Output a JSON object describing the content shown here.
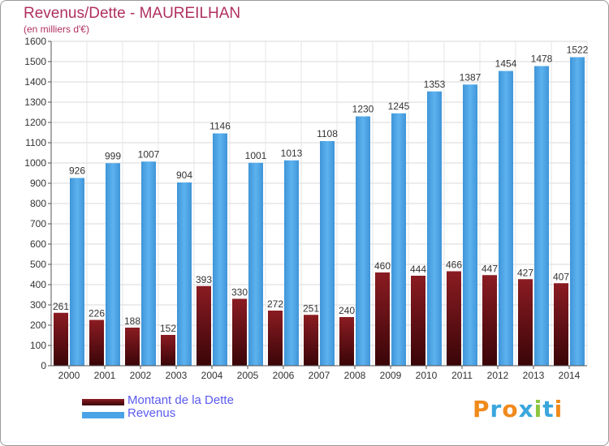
{
  "title": "Revenus/Dette - MAUREILHAN",
  "subtitle": "(en milliers d'€)",
  "colors": {
    "debt": "#6b1218",
    "revenue": "#4aa3e6",
    "title": "#b03060",
    "legend_text": "#5a5af0"
  },
  "legend": [
    {
      "label": "Montant de la Dette",
      "color": "#6b1218"
    },
    {
      "label": "Revenus",
      "color": "#4aa3e6"
    }
  ],
  "logo": {
    "letters": [
      "P",
      "r",
      "o",
      "x",
      "i",
      "t",
      "i"
    ],
    "colors": [
      "#f08a1c",
      "#3aa6dc",
      "#f08a1c",
      "#3aa6dc",
      "#8cc63f",
      "#3aa6dc",
      "#f08a1c"
    ]
  },
  "chart_data": {
    "type": "bar",
    "categories": [
      "2000",
      "2001",
      "2002",
      "2003",
      "2004",
      "2005",
      "2006",
      "2007",
      "2008",
      "2009",
      "2010",
      "2011",
      "2012",
      "2013",
      "2014"
    ],
    "series": [
      {
        "name": "Montant de la Dette",
        "values": [
          261,
          226,
          188,
          152,
          393,
          330,
          272,
          251,
          240,
          460,
          444,
          466,
          447,
          427,
          407
        ]
      },
      {
        "name": "Revenus",
        "values": [
          926,
          999,
          1007,
          904,
          1146,
          1001,
          1013,
          1108,
          1230,
          1245,
          1353,
          1387,
          1454,
          1478,
          1522
        ]
      }
    ],
    "ylim": [
      0,
      1600
    ],
    "yticks": [
      0,
      100,
      200,
      300,
      400,
      500,
      600,
      700,
      800,
      900,
      1000,
      1100,
      1200,
      1300,
      1400,
      1500,
      1600
    ],
    "grid": true,
    "legend_position": "bottom-left"
  }
}
